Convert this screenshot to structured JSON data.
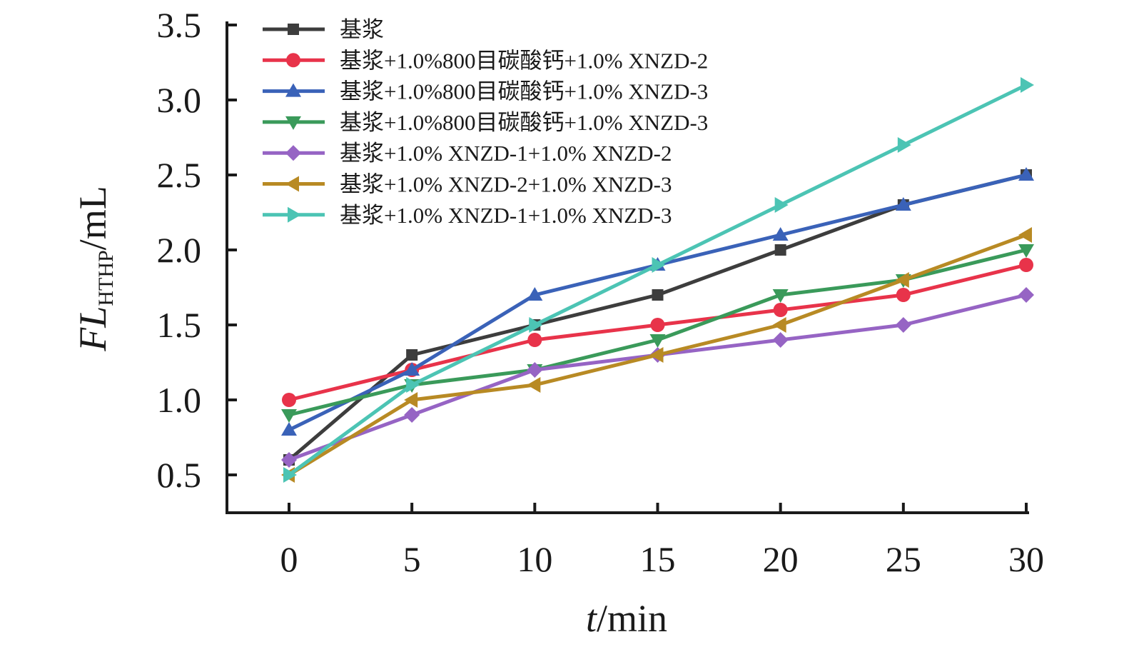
{
  "chart_data": {
    "type": "line",
    "x": [
      0,
      5,
      10,
      15,
      20,
      25,
      30
    ],
    "xlim": [
      -2.5,
      30
    ],
    "ylim": [
      0.3,
      3.5
    ],
    "x_ticks": [
      "0",
      "5",
      "10",
      "15",
      "20",
      "25",
      "30"
    ],
    "y_ticks": [
      "0.5",
      "1.0",
      "1.5",
      "2.0",
      "2.5",
      "3.0",
      "3.5"
    ],
    "xlabel": {
      "italic": "t",
      "rest": "/min"
    },
    "ylabel": {
      "italic": "FL",
      "sub": "HTHP",
      "rest": "/mL"
    },
    "legend_position": "top-left",
    "grid": false,
    "series": [
      {
        "name": "基浆",
        "color": "#3d3d3d",
        "marker": "square",
        "values": [
          0.6,
          1.3,
          1.5,
          1.7,
          2.0,
          2.3,
          2.5
        ]
      },
      {
        "name": "基浆+1.0%800目碳酸钙+1.0% XNZD-2",
        "color": "#e8334a",
        "marker": "circle",
        "values": [
          1.0,
          1.2,
          1.4,
          1.5,
          1.6,
          1.7,
          1.9
        ]
      },
      {
        "name": "基浆+1.0%800目碳酸钙+1.0% XNZD-3",
        "color": "#3a62b8",
        "marker": "triangle-up",
        "values": [
          0.8,
          1.2,
          1.7,
          1.9,
          2.1,
          2.3,
          2.5
        ]
      },
      {
        "name": "基浆+1.0%800目碳酸钙+1.0% XNZD-3",
        "color": "#3a9a5a",
        "marker": "triangle-down",
        "values": [
          0.9,
          1.1,
          1.2,
          1.4,
          1.7,
          1.8,
          2.0
        ]
      },
      {
        "name": "基浆+1.0% XNZD-1+1.0% XNZD-2",
        "color": "#9664c4",
        "marker": "diamond",
        "values": [
          0.6,
          0.9,
          1.2,
          1.3,
          1.4,
          1.5,
          1.7
        ]
      },
      {
        "name": "基浆+1.0% XNZD-2+1.0% XNZD-3",
        "color": "#b88a24",
        "marker": "triangle-left",
        "values": [
          0.5,
          1.0,
          1.1,
          1.3,
          1.5,
          1.8,
          2.1
        ]
      },
      {
        "name": "基浆+1.0% XNZD-1+1.0% XNZD-3",
        "color": "#4cc4b4",
        "marker": "triangle-right",
        "values": [
          0.5,
          1.1,
          1.5,
          1.9,
          2.3,
          2.7,
          3.1
        ]
      }
    ]
  }
}
